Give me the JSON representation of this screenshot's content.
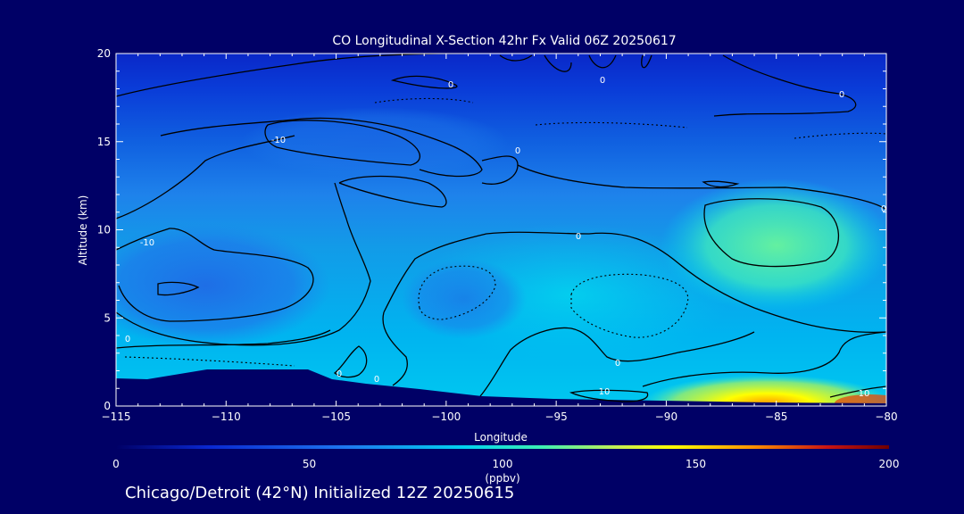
{
  "chart_data": {
    "type": "contour",
    "title": "CO Longitudinal X-Section 42hr  Fx Valid 06Z 20250617",
    "xlabel": "Longitude",
    "ylabel": "Altitude (km)",
    "xlim": [
      -115,
      -80
    ],
    "ylim": [
      0,
      20
    ],
    "x_ticks": [
      -115,
      -110,
      -105,
      -100,
      -95,
      -90,
      -85,
      -80
    ],
    "x_tick_labels": [
      "−115",
      "−110",
      "−105",
      "−100",
      "−95",
      "−90",
      "−85",
      "−80"
    ],
    "y_ticks": [
      0,
      5,
      10,
      15,
      20
    ],
    "y_tick_labels": [
      "0",
      "5",
      "10",
      "15",
      "20"
    ],
    "colorbar": {
      "range": [
        0,
        200
      ],
      "ticks": [
        0,
        50,
        100,
        150,
        200
      ],
      "tick_labels": [
        "0",
        "50",
        "100",
        "150",
        "200"
      ],
      "unit_label": "(ppbv)",
      "colors": [
        "#000066",
        "#0a28d0",
        "#1e78f0",
        "#00d2f0",
        "#3cf0b4",
        "#c8f050",
        "#ffff00",
        "#ff9600",
        "#c81414",
        "#6e0000"
      ]
    },
    "contour_labels": [
      "0",
      "10",
      "-10"
    ],
    "terrain": [
      [
        -115,
        1.6
      ],
      [
        -113.5,
        1.55
      ],
      [
        -111,
        2.0
      ],
      [
        -107,
        2.0
      ],
      [
        -105.5,
        2.0
      ],
      [
        -104,
        1.3
      ],
      [
        -100,
        0.9
      ],
      [
        -97,
        0.5
      ],
      [
        -95,
        0.4
      ],
      [
        -90,
        0.3
      ],
      [
        -85,
        0.2
      ],
      [
        -80,
        0.15
      ]
    ],
    "high_co_region": {
      "lon_range": [
        -91,
        -80
      ],
      "alt_range": [
        0,
        1.2
      ],
      "max_ppbv": 180
    }
  },
  "subtitle": "Chicago/Detroit (42°N) Initialized 12Z 20250615"
}
